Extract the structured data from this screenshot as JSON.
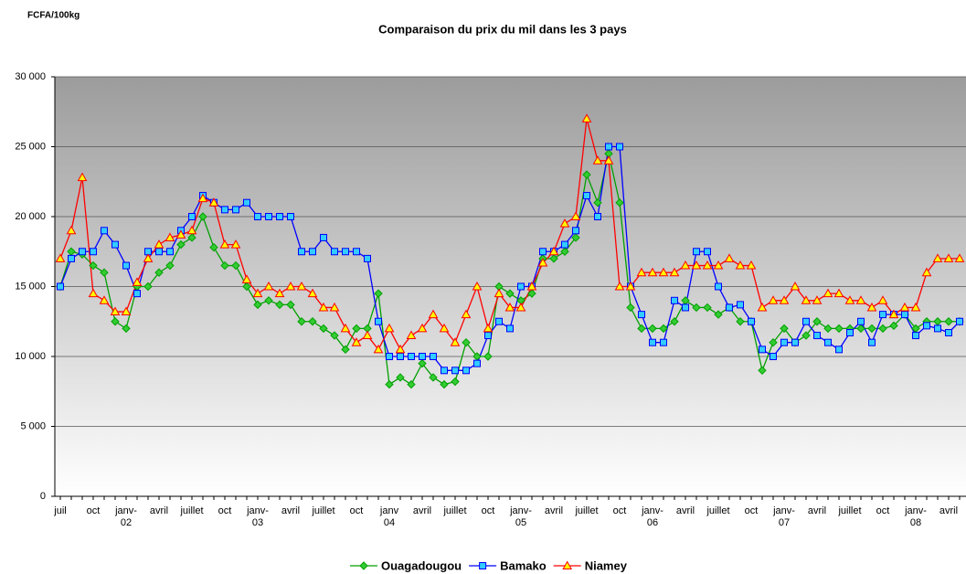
{
  "chart_data": {
    "type": "line",
    "title": "Comparaison du prix du mil dans les 3 pays",
    "y_axis_label": "FCFA/100kg",
    "categories": [
      "juil",
      null,
      null,
      "oct",
      null,
      null,
      "janv- 02",
      null,
      null,
      "avril",
      null,
      null,
      "juillet",
      null,
      null,
      "oct",
      null,
      null,
      "janv- 03",
      null,
      null,
      "avril",
      null,
      null,
      "juillet",
      null,
      null,
      "oct",
      null,
      null,
      "janv 04",
      null,
      null,
      "avril",
      null,
      null,
      "juillet",
      null,
      null,
      "oct",
      null,
      null,
      "janv- 05",
      null,
      null,
      "avril",
      null,
      null,
      "juillet",
      null,
      null,
      "oct",
      null,
      null,
      "janv- 06",
      null,
      null,
      "avril",
      null,
      null,
      "juillet",
      null,
      null,
      "oct",
      null,
      null,
      "janv- 07",
      null,
      null,
      "avril",
      null,
      null,
      "juillet",
      null,
      null,
      "oct",
      null,
      null,
      "janv- 08",
      null,
      null,
      "avril",
      null
    ],
    "series": [
      {
        "name": "Ouagadougou",
        "color": "#00a000",
        "values": [
          15000,
          17500,
          17300,
          16500,
          16000,
          12500,
          12000,
          15000,
          15000,
          16000,
          16500,
          18000,
          18500,
          20000,
          17800,
          16500,
          16500,
          15000,
          13700,
          14000,
          13700,
          13700,
          12500,
          12500,
          12000,
          11500,
          10500,
          12000,
          12000,
          14500,
          8000,
          8500,
          8000,
          9500,
          8500,
          8000,
          8200,
          11000,
          10000,
          10000,
          15000,
          14500,
          14000,
          14500,
          17000,
          17000,
          17500,
          18500,
          23000,
          21000,
          24500,
          21000,
          13500,
          12000,
          12000,
          12000,
          12500,
          14000,
          13500,
          13500,
          13000,
          13500,
          12500,
          12500,
          9000,
          11000,
          12000,
          11000,
          11500,
          12500,
          12000,
          12000,
          12000,
          12000,
          12000,
          12000,
          12200,
          13000,
          12000,
          12500,
          12500,
          12500,
          12500
        ]
      },
      {
        "name": "Bamako",
        "color": "#0000ff",
        "values": [
          15000,
          17000,
          17500,
          17500,
          19000,
          18000,
          16500,
          14500,
          17500,
          17500,
          17500,
          19000,
          20000,
          21500,
          21000,
          20500,
          20500,
          21000,
          20000,
          20000,
          20000,
          20000,
          17500,
          17500,
          18500,
          17500,
          17500,
          17500,
          17000,
          12500,
          10000,
          10000,
          10000,
          10000,
          10000,
          9000,
          9000,
          9000,
          9500,
          11500,
          12500,
          12000,
          15000,
          15000,
          17500,
          17500,
          18000,
          19000,
          21500,
          20000,
          25000,
          25000,
          15000,
          13000,
          11000,
          11000,
          14000,
          13500,
          17500,
          17500,
          15000,
          13500,
          13700,
          12500,
          10500,
          10000,
          11000,
          11000,
          12500,
          11500,
          11000,
          10500,
          11700,
          12500,
          11000,
          13000,
          13000,
          13000,
          11500,
          12200,
          12000,
          11700,
          12500
        ]
      },
      {
        "name": "Niamey",
        "color": "#ff0000",
        "values": [
          17000,
          19000,
          22800,
          14500,
          14000,
          13200,
          13200,
          15300,
          17000,
          18000,
          18500,
          18700,
          19000,
          21300,
          21000,
          18000,
          18000,
          15500,
          14500,
          15000,
          14500,
          15000,
          15000,
          14500,
          13500,
          13500,
          12000,
          11000,
          11500,
          10500,
          12000,
          10500,
          11500,
          12000,
          13000,
          12000,
          11000,
          13000,
          15000,
          12000,
          14500,
          13500,
          13500,
          15000,
          16700,
          17500,
          19500,
          20000,
          27000,
          24000,
          24000,
          15000,
          15000,
          16000,
          16000,
          16000,
          16000,
          16500,
          16500,
          16500,
          16500,
          17000,
          16500,
          16500,
          13500,
          14000,
          14000,
          15000,
          14000,
          14000,
          14500,
          14500,
          14000,
          14000,
          13500,
          14000,
          13000,
          13500,
          13500,
          16000,
          17000,
          17000,
          17000
        ]
      }
    ],
    "ylim": [
      0,
      30000
    ],
    "yticks": [
      0,
      {
        "value": 5000,
        "label": "5 000"
      },
      {
        "value": 10000,
        "label": "10 000"
      },
      {
        "value": 15000,
        "label": "15 000"
      },
      {
        "value": 20000,
        "label": "20 000"
      },
      {
        "value": 25000,
        "label": "25 000"
      },
      {
        "value": 30000,
        "label": "30 000"
      }
    ],
    "grid": true,
    "legend": "bottom"
  }
}
